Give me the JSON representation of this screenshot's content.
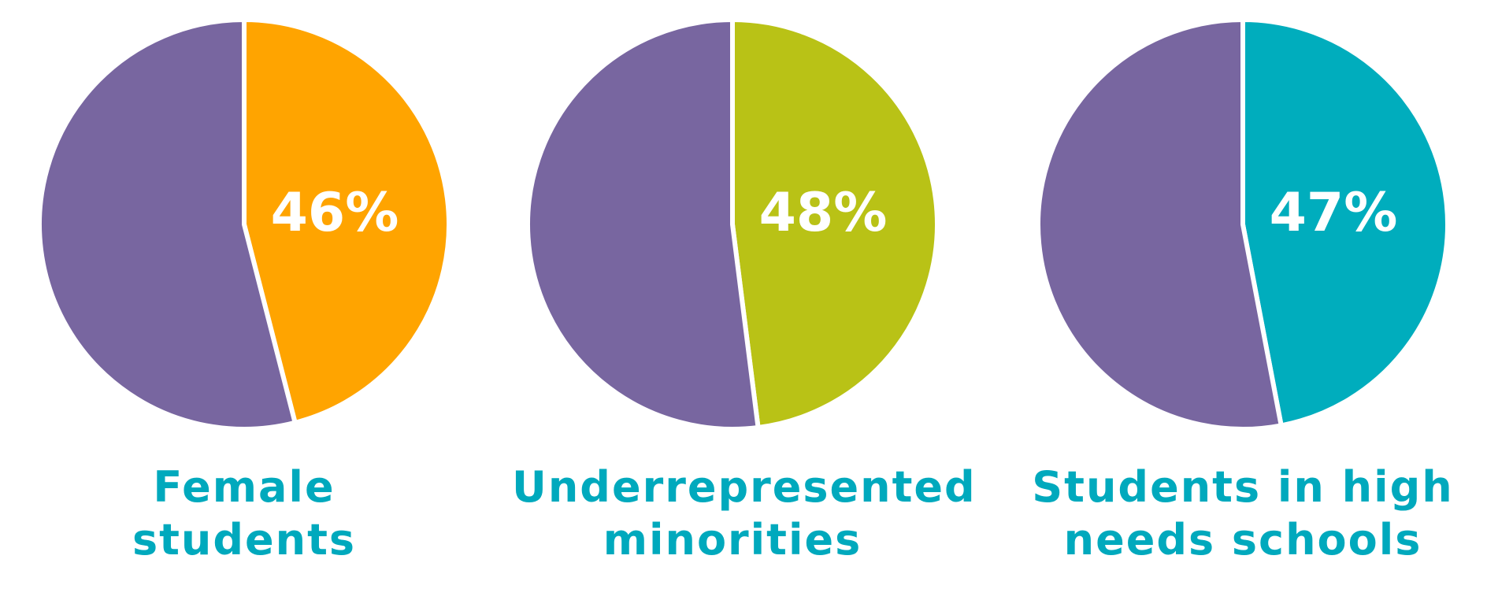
{
  "chart_data": [
    {
      "type": "pie",
      "value_label": "46%",
      "slices": [
        {
          "value": 46,
          "color": "#ffa400"
        },
        {
          "value": 54,
          "color": "#7866a0"
        }
      ],
      "caption": [
        "Female",
        "students"
      ]
    },
    {
      "type": "pie",
      "value_label": "48%",
      "slices": [
        {
          "value": 48,
          "color": "#b9c216"
        },
        {
          "value": 52,
          "color": "#7866a0"
        }
      ],
      "caption": [
        "Underrepresented",
        "minorities"
      ]
    },
    {
      "type": "pie",
      "value_label": "47%",
      "slices": [
        {
          "value": 47,
          "color": "#00adbd"
        },
        {
          "value": 53,
          "color": "#7866a0"
        }
      ],
      "caption": [
        "Students in high",
        "needs schools"
      ]
    }
  ]
}
